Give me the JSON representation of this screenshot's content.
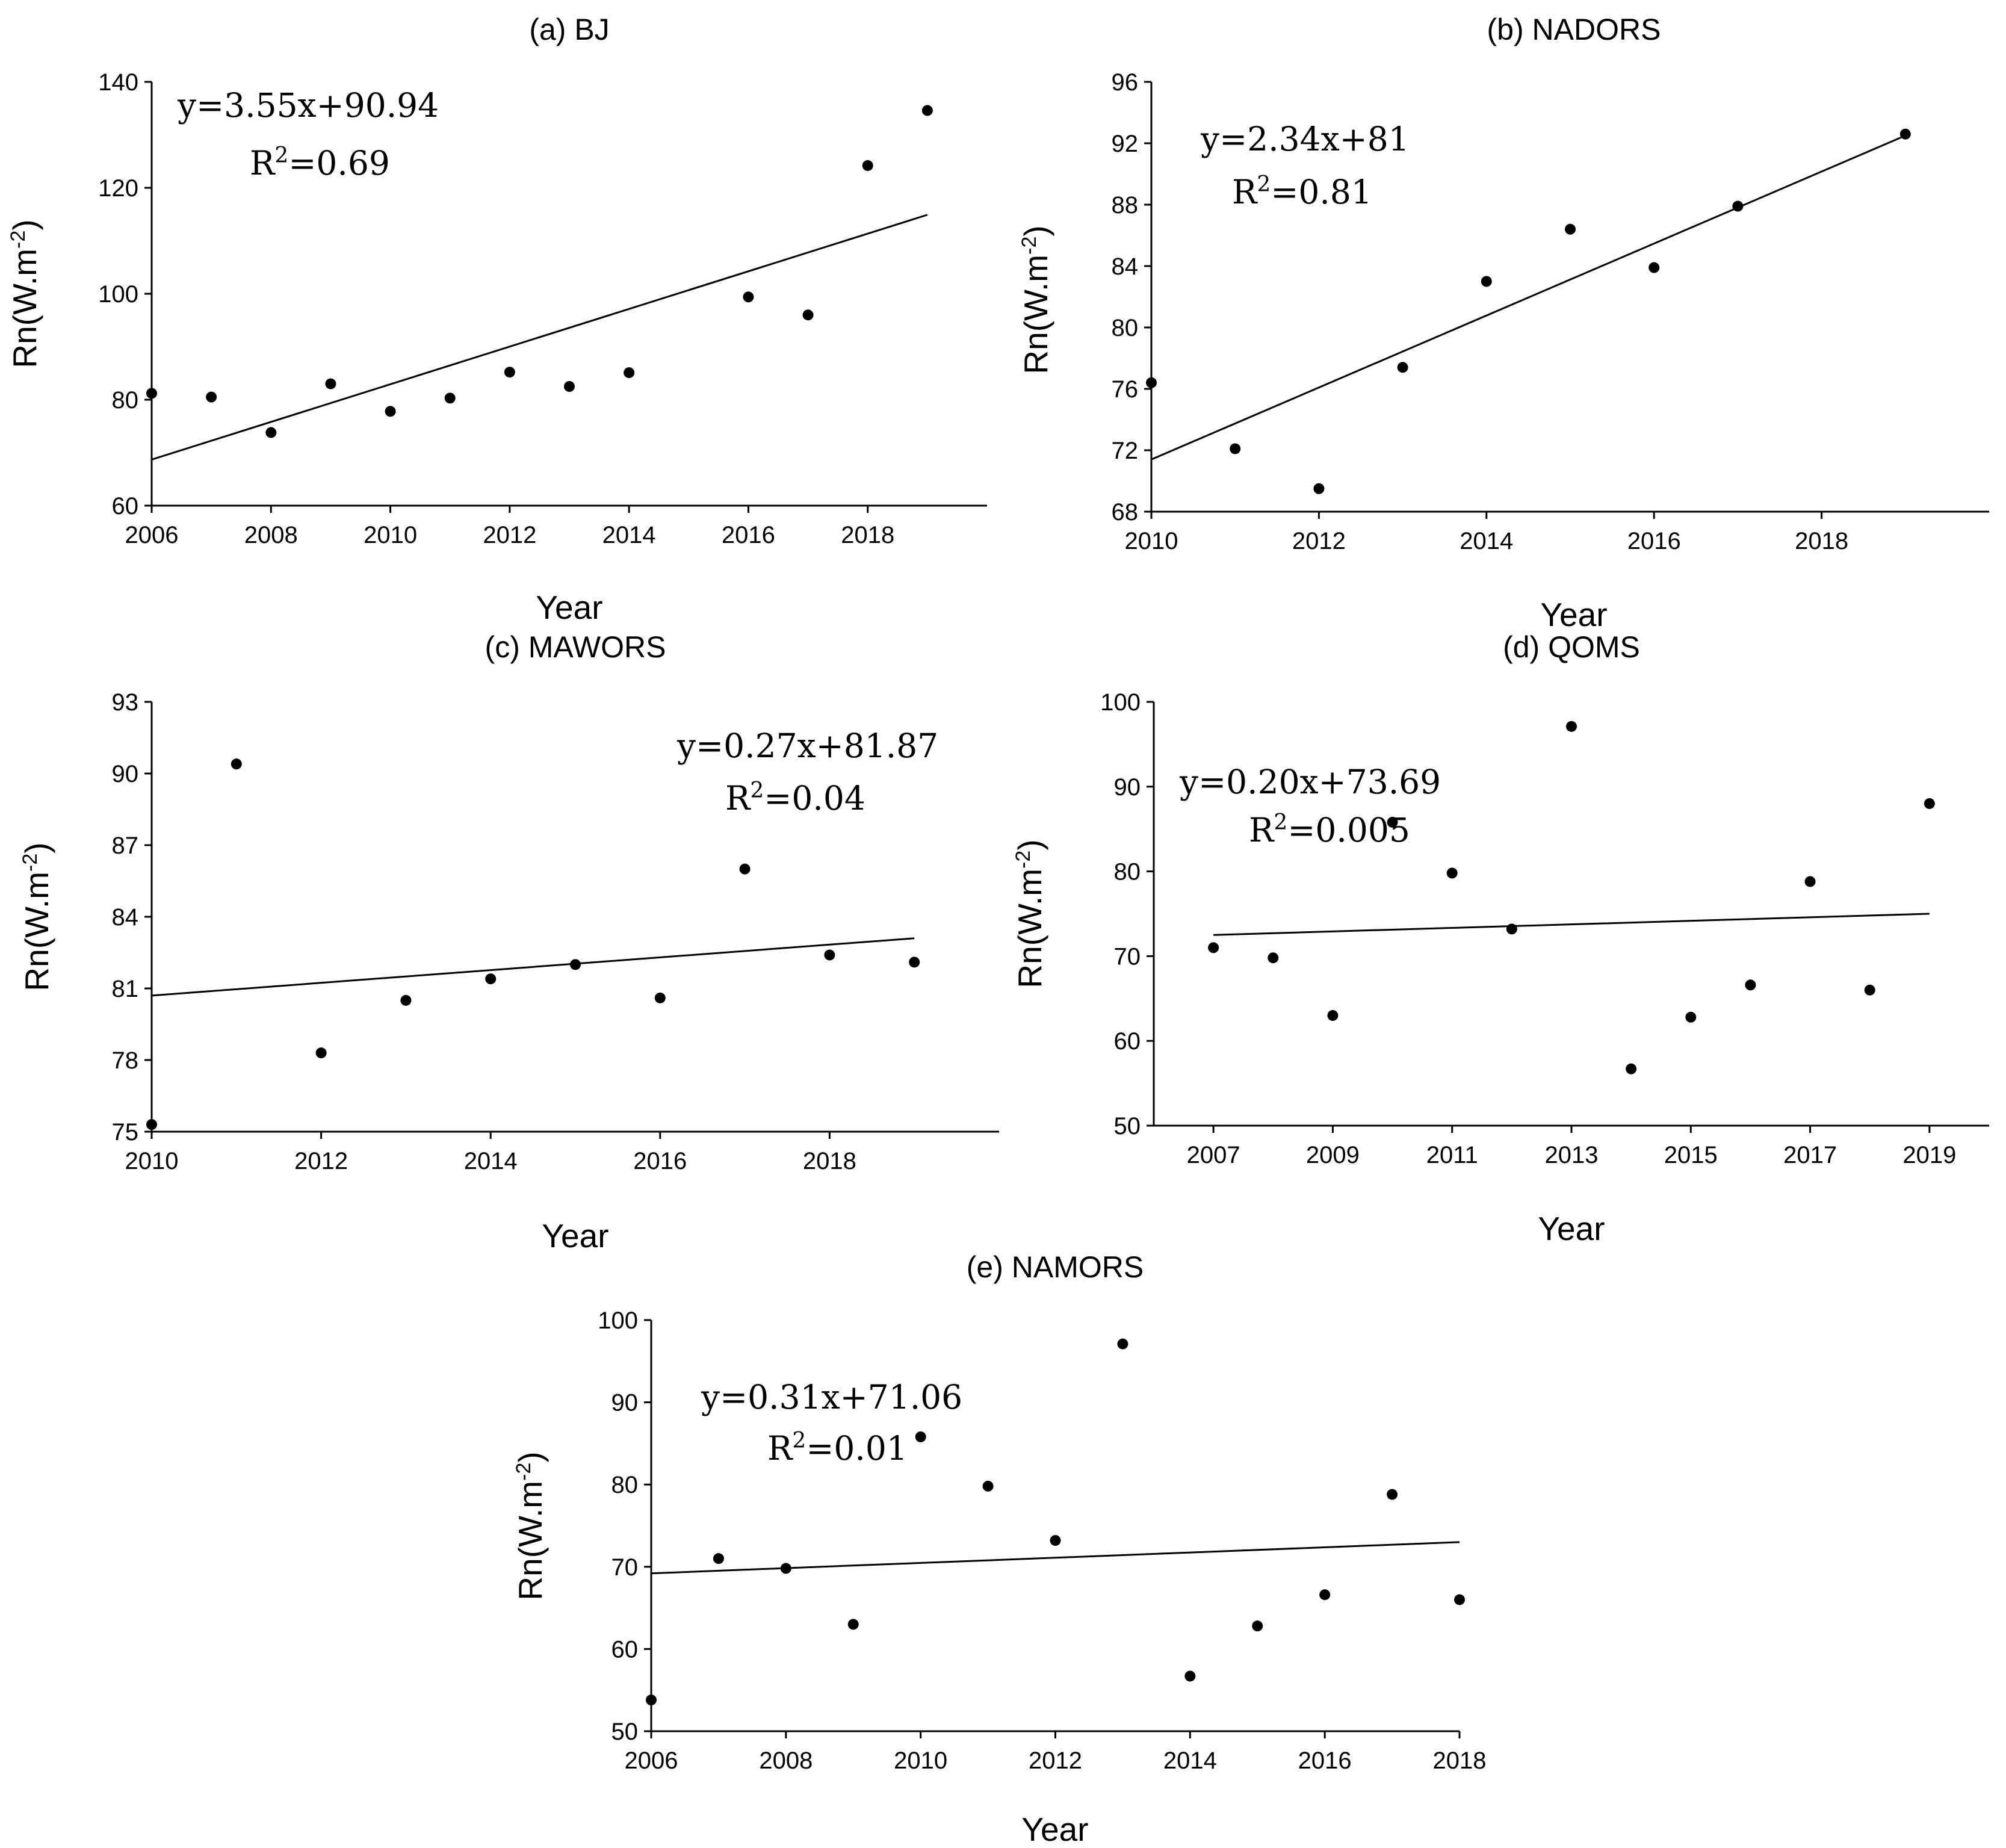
{
  "chart_data": [
    {
      "type": "scatter",
      "title": "(a) BJ",
      "xlabel": "Year",
      "ylabel": "Rn(W.m",
      "ylabel_sup": "-2",
      "ylabel_end": ")",
      "xlim": [
        2006,
        2020
      ],
      "ylim": [
        60,
        140
      ],
      "xticks": [
        2006,
        2008,
        2010,
        2012,
        2014,
        2016,
        2018
      ],
      "yticks": [
        60,
        80,
        100,
        120,
        140
      ],
      "x": [
        2006,
        2007,
        2008,
        2009,
        2010,
        2011,
        2012,
        2013,
        2014,
        2016,
        2017,
        2018,
        2019
      ],
      "y": [
        81.2,
        80.5,
        73.8,
        83,
        77.8,
        80.3,
        85.2,
        82.5,
        85.1,
        99.4,
        96,
        124.2,
        134.6
      ],
      "trend": {
        "x": [
          2006,
          2019
        ],
        "y": [
          68.7,
          114.9
        ]
      },
      "equation": "y=3.55x+90.94",
      "r2_prefix": "R",
      "r2_sup": "2",
      "r2_value": "=0.69"
    },
    {
      "type": "scatter",
      "title": "(b) NADORS",
      "xlabel": "Year",
      "ylabel": "Rn(W.m",
      "ylabel_sup": "-2",
      "ylabel_end": ")",
      "xlim": [
        2010,
        2020
      ],
      "ylim": [
        68,
        96
      ],
      "xticks": [
        2010,
        2012,
        2014,
        2016,
        2018
      ],
      "yticks": [
        68,
        72,
        76,
        80,
        84,
        88,
        92,
        96
      ],
      "x": [
        2010,
        2011,
        2012,
        2013,
        2014,
        2015,
        2016,
        2017,
        2019
      ],
      "y": [
        76.4,
        72.1,
        69.5,
        77.4,
        83,
        86.4,
        83.9,
        87.9,
        92.6
      ],
      "trend": {
        "x": [
          2010,
          2019
        ],
        "y": [
          71.4,
          92.5
        ]
      },
      "equation": "y=2.34x+81",
      "r2_prefix": "R",
      "r2_sup": "2",
      "r2_value": "=0.81"
    },
    {
      "type": "scatter",
      "title": "(c) MAWORS",
      "xlabel": "Year",
      "ylabel": "Rn(W.m",
      "ylabel_sup": "-2",
      "ylabel_end": ")",
      "xlim": [
        2010,
        2020
      ],
      "ylim": [
        75,
        93
      ],
      "xticks": [
        2010,
        2012,
        2014,
        2016,
        2018
      ],
      "yticks": [
        75,
        78,
        81,
        84,
        87,
        90,
        93
      ],
      "x": [
        2010,
        2011,
        2012,
        2013,
        2014,
        2015,
        2016,
        2017,
        2018,
        2019
      ],
      "y": [
        75.3,
        90.4,
        78.3,
        80.5,
        81.4,
        82,
        80.6,
        86,
        82.4,
        82.1
      ],
      "trend": {
        "x": [
          2010,
          2019
        ],
        "y": [
          80.7,
          83.1
        ]
      },
      "equation": "y=0.27x+81.87",
      "r2_prefix": "R",
      "r2_sup": "2",
      "r2_value": "=0.04"
    },
    {
      "type": "scatter",
      "title": "(d) QOMS",
      "xlabel": "Year",
      "ylabel": "Rn(W.m",
      "ylabel_sup": "-2",
      "ylabel_end": ")",
      "xlim": [
        2006,
        2020
      ],
      "ylim": [
        50,
        100
      ],
      "xticks": [
        2007,
        2009,
        2011,
        2013,
        2015,
        2017,
        2019
      ],
      "yticks": [
        50,
        60,
        70,
        80,
        90,
        100
      ],
      "x": [
        2007,
        2008,
        2009,
        2010,
        2011,
        2012,
        2013,
        2014,
        2015,
        2016,
        2017,
        2018,
        2019
      ],
      "y": [
        71,
        69.8,
        63,
        85.8,
        79.8,
        73.2,
        97.1,
        56.7,
        62.8,
        66.6,
        78.8,
        66,
        88
      ],
      "trend": {
        "x": [
          2007,
          2019
        ],
        "y": [
          72.5,
          75
        ]
      },
      "equation": "y=0.20x+73.69",
      "r2_prefix": "R",
      "r2_sup": "2",
      "r2_value": "=0.005"
    },
    {
      "type": "scatter",
      "title": "(e) NAMORS",
      "xlabel": "Year",
      "ylabel": "Rn(W.m",
      "ylabel_sup": "-2",
      "ylabel_end": ")",
      "xlim": [
        2006,
        2018
      ],
      "ylim": [
        50,
        100
      ],
      "xticks": [
        2006,
        2008,
        2010,
        2012,
        2014,
        2016,
        2018
      ],
      "yticks": [
        50,
        60,
        70,
        80,
        90,
        100
      ],
      "x": [
        2006,
        2007,
        2008,
        2009,
        2010,
        2011,
        2012,
        2013,
        2014,
        2015,
        2016,
        2017,
        2018
      ],
      "y": [
        53.8,
        71,
        69.8,
        63,
        85.8,
        79.8,
        73.2,
        97.1,
        56.7,
        62.8,
        66.6,
        78.8,
        66
      ],
      "trend": {
        "x": [
          2006,
          2018
        ],
        "y": [
          69.2,
          73
        ]
      },
      "equation": "y=0.31x+71.06",
      "r2_prefix": "R",
      "r2_sup": "2",
      "r2_value": "=0.01"
    }
  ]
}
